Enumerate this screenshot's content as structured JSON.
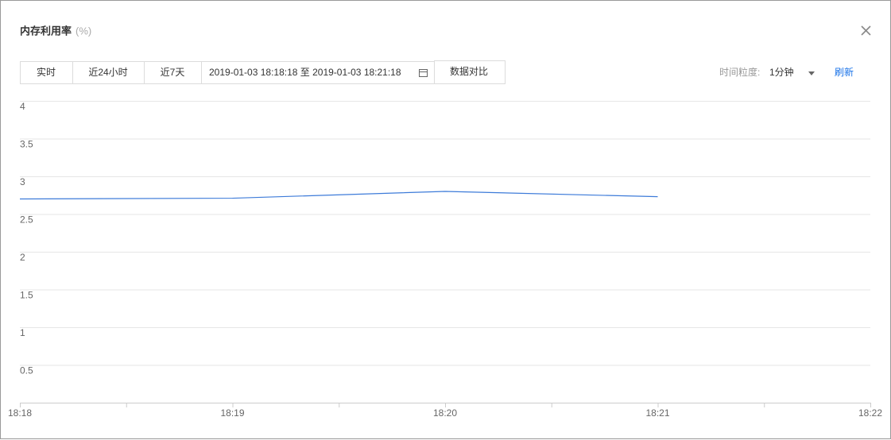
{
  "dialog": {
    "title": "内存利用率",
    "unit": "(%)",
    "tabs": [
      "实时",
      "近24小时",
      "近7天"
    ],
    "range": "2019-01-03 18:18:18 至 2019-01-03 18:21:18",
    "compare": "数据对比",
    "granularity_label": "时间粒度:",
    "granularity": "1分钟",
    "refresh": "刷新"
  },
  "chart_data": {
    "type": "line",
    "categories": [
      "18:18",
      "18:19",
      "18:20",
      "18:21",
      "18:22"
    ],
    "series": [
      {
        "color": "#3d7bd9",
        "values": [
          2.7,
          2.71,
          2.8,
          2.73,
          null
        ]
      }
    ],
    "ylim": [
      0,
      4
    ],
    "yticks": [
      0.5,
      1,
      1.5,
      2,
      2.5,
      3,
      3.5,
      4
    ],
    "grid": true
  }
}
